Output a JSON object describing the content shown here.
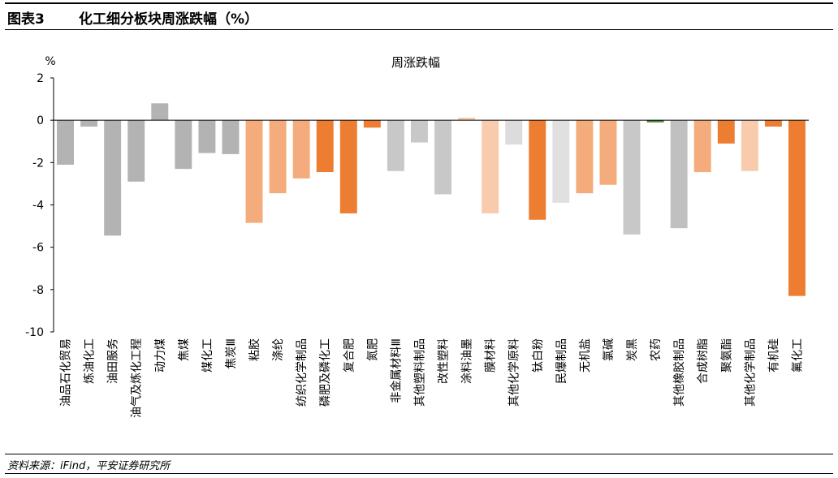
{
  "figure": {
    "number": "图表3",
    "title": "化工细分板块周涨跌幅（%）"
  },
  "source": "资料来源：iFind，平安证券研究所",
  "chart_data": {
    "type": "bar",
    "title": "周涨跌幅",
    "ylabel": "%",
    "xlabel": "",
    "ylim": [
      -10,
      2
    ],
    "yticks": [
      2,
      0,
      -2,
      -4,
      -6,
      -8,
      -10
    ],
    "grid": false,
    "legend": "none",
    "categories": [
      "油品石化贸易",
      "炼油化工",
      "油田服务",
      "油气及炼化工程",
      "动力煤",
      "焦煤",
      "煤化工",
      "焦炭Ⅲ",
      "粘胶",
      "涤纶",
      "纺织化学制品",
      "磷肥及磷化工",
      "复合肥",
      "氮肥",
      "非金属材料Ⅲ",
      "其他塑料制品",
      "改性塑料",
      "涂料油墨",
      "膜材料",
      "其他化学原料",
      "钛白粉",
      "民爆制品",
      "无机盐",
      "氯碱",
      "炭黑",
      "农药",
      "其他橡胶制品",
      "合成树脂",
      "聚氨酯",
      "其他化学制品",
      "有机硅",
      "氟化工"
    ],
    "values": [
      -2.1,
      -0.3,
      -5.45,
      -2.9,
      0.8,
      -2.3,
      -1.55,
      -1.6,
      -4.85,
      -3.45,
      -2.75,
      -2.45,
      -4.4,
      -0.35,
      -2.4,
      -1.05,
      -3.5,
      0.12,
      -4.4,
      -1.15,
      -4.7,
      -3.9,
      -3.45,
      -3.05,
      -5.4,
      -0.1,
      -5.1,
      -2.45,
      -1.1,
      -2.4,
      -0.3,
      -8.3
    ],
    "colors": [
      "#b3b3b3",
      "#b3b3b3",
      "#b3b3b3",
      "#b3b3b3",
      "#b3b3b3",
      "#b3b3b3",
      "#b3b3b3",
      "#b3b3b3",
      "#f4ac7c",
      "#f4ac7c",
      "#f4ac7c",
      "#ed7d31",
      "#ed7d31",
      "#ed7d31",
      "#c8c8c8",
      "#c8c8c8",
      "#c8c8c8",
      "#f8cbad",
      "#f8cbad",
      "#dcdcdc",
      "#ed7d31",
      "#e0e0e0",
      "#f4ac7c",
      "#f4ac7c",
      "#c8c8c8",
      "#548235",
      "#c0c0c0",
      "#f4ac7c",
      "#ed7d31",
      "#f8cbad",
      "#ed7d31",
      "#ed7d31"
    ]
  }
}
